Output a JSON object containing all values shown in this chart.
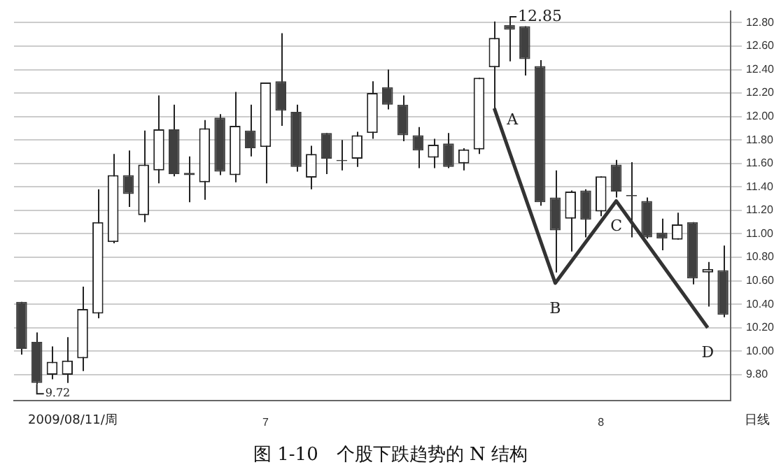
{
  "chart_data": {
    "type": "candlestick",
    "title": "图 1-10　个股下跌趋势的 N 结构",
    "categories": [
      null,
      null,
      null,
      null,
      null,
      null,
      null,
      null,
      null,
      null,
      null,
      null,
      null,
      null,
      null,
      null,
      "7",
      null,
      null,
      null,
      null,
      null,
      null,
      null,
      null,
      null,
      null,
      null,
      null,
      null,
      null,
      null,
      null,
      null,
      null,
      null,
      null,
      null,
      "8",
      null,
      null,
      null,
      null,
      null,
      null,
      null,
      null
    ],
    "ohlc": [
      [
        10.42,
        10.42,
        9.97,
        10.02
      ],
      [
        10.08,
        10.16,
        9.72,
        9.73
      ],
      [
        9.8,
        10.04,
        9.76,
        9.91
      ],
      [
        9.8,
        10.12,
        9.73,
        9.92
      ],
      [
        9.94,
        10.55,
        9.83,
        10.36
      ],
      [
        10.32,
        11.38,
        10.28,
        11.1
      ],
      [
        10.93,
        11.68,
        10.92,
        11.5
      ],
      [
        11.5,
        11.71,
        11.23,
        11.34
      ],
      [
        11.16,
        11.88,
        11.1,
        11.59
      ],
      [
        11.54,
        12.18,
        11.43,
        11.89
      ],
      [
        11.89,
        12.1,
        11.49,
        11.51
      ],
      [
        11.52,
        11.66,
        11.27,
        11.5
      ],
      [
        11.44,
        11.97,
        11.29,
        11.9
      ],
      [
        11.99,
        12.02,
        11.5,
        11.53
      ],
      [
        11.5,
        12.21,
        11.44,
        11.92
      ],
      [
        11.88,
        12.1,
        11.66,
        11.73
      ],
      [
        11.74,
        12.29,
        11.43,
        12.29
      ],
      [
        12.3,
        12.71,
        11.92,
        12.05
      ],
      [
        12.04,
        12.1,
        11.53,
        11.57
      ],
      [
        11.48,
        11.75,
        11.38,
        11.68
      ],
      [
        11.86,
        11.86,
        11.51,
        11.64
      ],
      [
        11.63,
        11.8,
        11.54,
        11.62
      ],
      [
        11.64,
        11.87,
        11.57,
        11.84
      ],
      [
        11.86,
        12.3,
        11.81,
        12.2
      ],
      [
        12.25,
        12.4,
        12.06,
        12.1
      ],
      [
        12.1,
        12.18,
        11.79,
        11.84
      ],
      [
        11.84,
        11.91,
        11.56,
        11.71
      ],
      [
        11.65,
        11.81,
        11.56,
        11.76
      ],
      [
        11.77,
        11.86,
        11.56,
        11.57
      ],
      [
        11.6,
        11.73,
        11.54,
        11.72
      ],
      [
        11.72,
        12.33,
        11.68,
        12.33
      ],
      [
        12.42,
        12.81,
        12.07,
        12.67
      ],
      [
        12.78,
        12.85,
        12.47,
        12.74
      ],
      [
        12.77,
        12.77,
        12.35,
        12.49
      ],
      [
        12.43,
        12.48,
        11.24,
        11.27
      ],
      [
        11.31,
        11.54,
        10.67,
        11.03
      ],
      [
        11.13,
        11.37,
        10.85,
        11.36
      ],
      [
        11.37,
        11.38,
        10.97,
        11.12
      ],
      [
        11.19,
        11.49,
        11.15,
        11.49
      ],
      [
        11.59,
        11.63,
        11.31,
        11.36
      ],
      [
        11.33,
        11.61,
        10.97,
        11.32
      ],
      [
        11.28,
        11.31,
        10.96,
        10.97
      ],
      [
        11.01,
        11.13,
        10.86,
        10.96
      ],
      [
        10.95,
        11.18,
        10.95,
        11.08
      ],
      [
        11.1,
        11.1,
        10.57,
        10.62
      ],
      [
        10.67,
        10.76,
        10.38,
        10.7
      ],
      [
        10.69,
        10.9,
        10.29,
        10.31
      ]
    ],
    "series": [
      {
        "type": "line",
        "color": "#333333",
        "values": [
          null,
          null,
          null,
          null,
          null,
          null,
          null,
          null,
          null,
          null,
          null,
          null,
          null,
          null,
          null,
          null,
          null,
          null,
          null,
          null,
          null,
          null,
          null,
          null,
          null,
          null,
          null,
          null,
          null,
          null,
          null,
          12.07,
          null,
          null,
          null,
          10.58,
          null,
          null,
          null,
          11.28,
          null,
          null,
          null,
          null,
          null,
          10.2,
          null
        ],
        "value_labels": [
          null,
          null,
          null,
          null,
          null,
          null,
          null,
          null,
          null,
          null,
          null,
          null,
          null,
          null,
          null,
          null,
          null,
          null,
          null,
          null,
          null,
          null,
          null,
          null,
          null,
          null,
          null,
          null,
          null,
          null,
          null,
          "A",
          null,
          null,
          null,
          "B",
          null,
          null,
          null,
          "C",
          null,
          null,
          null,
          null,
          null,
          "D",
          null
        ]
      }
    ],
    "ylim": [
      9.58,
      12.9
    ],
    "yticks": [
      {
        "value": 9.8,
        "label": "9.80"
      },
      {
        "value": 10,
        "label": "10.00"
      },
      {
        "value": 10.2,
        "label": "10.20"
      },
      {
        "value": 10.4,
        "label": "10.40"
      },
      {
        "value": 10.6,
        "label": "10.60"
      },
      {
        "value": 10.8,
        "label": "10.80"
      },
      {
        "value": 11,
        "label": "11.00"
      },
      {
        "value": 11.2,
        "label": "11.20"
      },
      {
        "value": 11.4,
        "label": "11.40"
      },
      {
        "value": 11.6,
        "label": "11.60"
      },
      {
        "value": 11.8,
        "label": "11.80"
      },
      {
        "value": 12,
        "label": "12.00"
      },
      {
        "value": 12.2,
        "label": "12.20"
      },
      {
        "value": 12.4,
        "label": "12.40"
      },
      {
        "value": 12.6,
        "label": "12.60"
      },
      {
        "value": 12.8,
        "label": "12.80"
      }
    ],
    "grid": "y",
    "legend": false,
    "annotations": [
      "12.85",
      "9.72",
      "2009/08/11/周",
      "日线"
    ]
  }
}
